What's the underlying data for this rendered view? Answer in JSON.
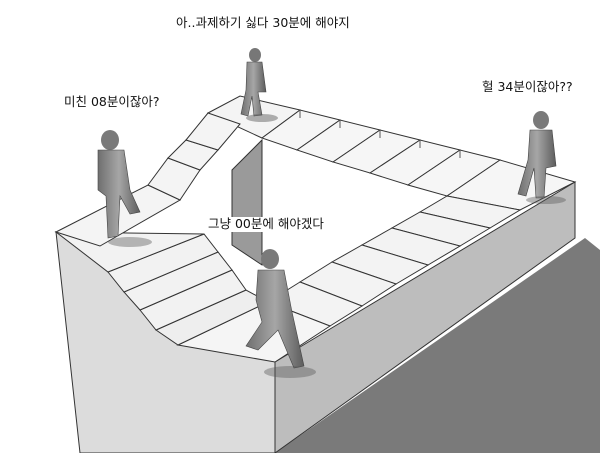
{
  "captions": {
    "top": "아..과제하기 싫다 30분에 해야지",
    "left": "미친 08분이잖아?",
    "right": "헐 34분이잖아??",
    "middle": "그냥 00분에 해야겠다"
  },
  "colors": {
    "background": "#ffffff",
    "stair_top": "#f7f7f7",
    "stair_face": "#d0d0d0",
    "wall_left": "#dcdcdc",
    "wall_right": "#bdbdbd",
    "shadow": "#7a7a7a",
    "figure": "#8a8a8a"
  }
}
